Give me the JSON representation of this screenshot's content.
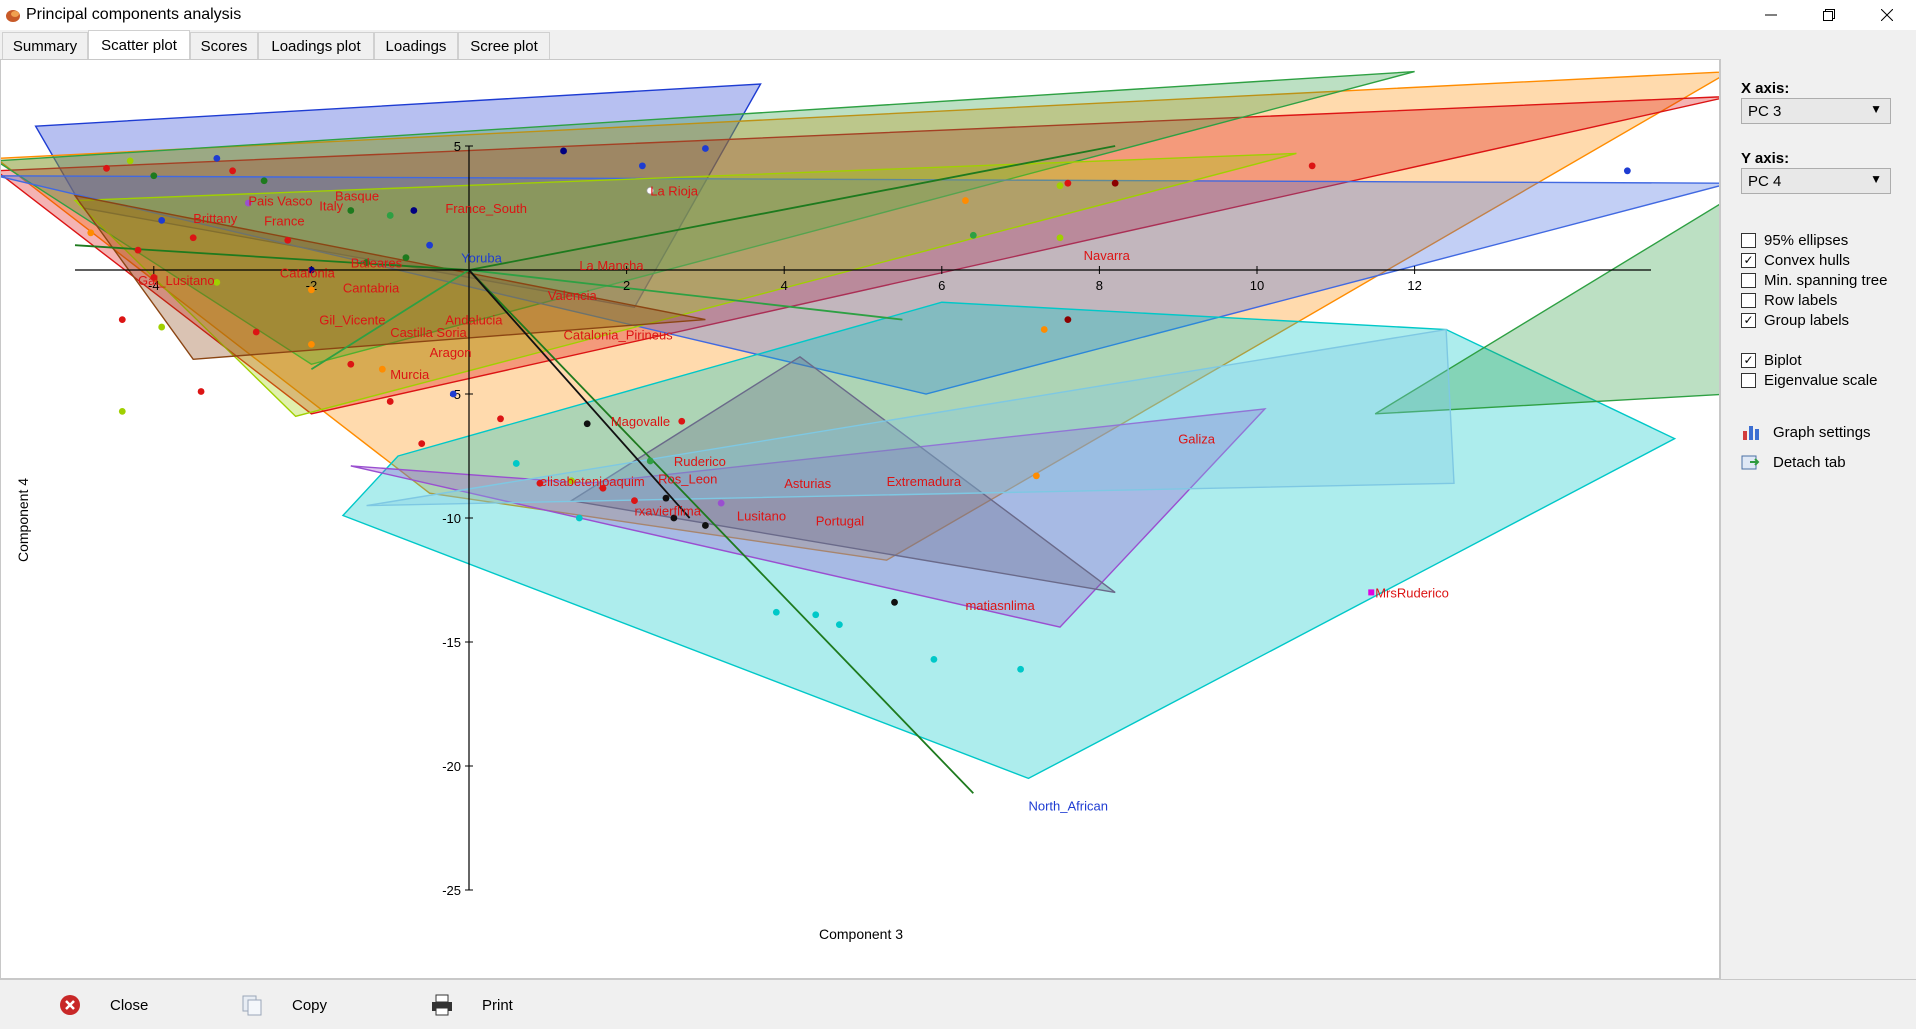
{
  "window": {
    "title": "Principal components analysis"
  },
  "tabs": [
    "Summary",
    "Scatter plot",
    "Scores",
    "Loadings plot",
    "Loadings",
    "Scree plot"
  ],
  "active_tab": "Scatter plot",
  "panel": {
    "x_axis_label": "X axis:",
    "x_axis_value": "PC 3",
    "y_axis_label": "Y axis:",
    "y_axis_value": "PC 4",
    "checkboxes": [
      {
        "label": "95% ellipses",
        "checked": false
      },
      {
        "label": "Convex hulls",
        "checked": true
      },
      {
        "label": "Min. spanning tree",
        "checked": false
      },
      {
        "label": "Row labels",
        "checked": false
      },
      {
        "label": "Group labels",
        "checked": true
      },
      {
        "label": "Biplot",
        "checked": true
      },
      {
        "label": "Eigenvalue scale",
        "checked": false
      }
    ],
    "graph_settings": "Graph settings",
    "detach_tab": "Detach tab"
  },
  "bottom": {
    "close": "Close",
    "copy": "Copy",
    "print": "Print"
  },
  "chart_data": {
    "type": "scatter",
    "xlabel": "Component 3",
    "ylabel": "Component 4",
    "xlim": [
      -5,
      15
    ],
    "ylim": [
      -25,
      5
    ],
    "x_ticks": [
      -4,
      -2,
      2,
      4,
      6,
      8,
      10,
      12
    ],
    "y_ticks": [
      5,
      -5,
      -10,
      -15,
      -20,
      -25
    ],
    "hulls": [
      {
        "color": "#1e3cd2",
        "points": [
          [
            -5.5,
            5.8
          ],
          [
            3.7,
            7.5
          ],
          [
            2.1,
            -1.5
          ],
          [
            -4.9,
            2.5
          ]
        ]
      },
      {
        "color": "#ff8c00",
        "points": [
          [
            -6,
            4.5
          ],
          [
            16,
            8
          ],
          [
            5.3,
            -11.7
          ],
          [
            -0.5,
            -9
          ]
        ]
      },
      {
        "color": "#dc1414",
        "points": [
          [
            -6,
            4
          ],
          [
            16,
            7
          ],
          [
            -2,
            -5.8
          ]
        ]
      },
      {
        "color": "#2ea043",
        "points": [
          [
            -6,
            4.4
          ],
          [
            12,
            8
          ],
          [
            -2,
            -3.8
          ]
        ]
      },
      {
        "color": "#4169e1",
        "points": [
          [
            -6,
            3.8
          ],
          [
            16,
            3.5
          ],
          [
            5.8,
            -5
          ]
        ]
      },
      {
        "color": "#00c8c8",
        "points": [
          [
            -0.9,
            -7.5
          ],
          [
            6,
            -1.3
          ],
          [
            12.4,
            -2.4
          ],
          [
            15.3,
            -6.8
          ],
          [
            7.1,
            -20.5
          ],
          [
            -1.6,
            -9.9
          ]
        ]
      },
      {
        "color": "#9a4fd0",
        "points": [
          [
            1.5,
            -8.6
          ],
          [
            10.1,
            -5.6
          ],
          [
            7.5,
            -14.4
          ],
          [
            -1.5,
            -7.9
          ]
        ]
      },
      {
        "color": "#6a6a8a",
        "points": [
          [
            4.2,
            -3.5
          ],
          [
            8.2,
            -13
          ],
          [
            1.3,
            -9.3
          ]
        ]
      },
      {
        "color": "#a0d000",
        "points": [
          [
            -5,
            2.8
          ],
          [
            10.5,
            4.7
          ],
          [
            -2.2,
            -5.9
          ]
        ]
      },
      {
        "color": "#8b4513",
        "points": [
          [
            -5,
            3
          ],
          [
            3,
            -2
          ],
          [
            -3.5,
            -3.6
          ]
        ]
      },
      {
        "color": "#2ea043",
        "points": [
          [
            11.5,
            -5.8
          ],
          [
            16,
            -5
          ],
          [
            16,
            2.9
          ]
        ]
      },
      {
        "color": "#7ec8e3",
        "points": [
          [
            -1.3,
            -9.5
          ],
          [
            12.4,
            -2.4
          ],
          [
            12.5,
            -8.6
          ]
        ]
      }
    ],
    "points": [
      {
        "x": -4.6,
        "y": 4.1,
        "c": "#dc1414"
      },
      {
        "x": -4.3,
        "y": 4.4,
        "c": "#a0d000"
      },
      {
        "x": -4.0,
        "y": 3.8,
        "c": "#1e7a1e"
      },
      {
        "x": -3.2,
        "y": 4.5,
        "c": "#1e3cd2"
      },
      {
        "x": -3.0,
        "y": 4.0,
        "c": "#dc1414"
      },
      {
        "x": -2.6,
        "y": 3.6,
        "c": "#1e7a1e"
      },
      {
        "x": -3.9,
        "y": 2.0,
        "c": "#1e3cd2"
      },
      {
        "x": -3.5,
        "y": 1.3,
        "c": "#dc1414"
      },
      {
        "x": -2.8,
        "y": 2.7,
        "c": "#9a4fd0"
      },
      {
        "x": -4.8,
        "y": 1.5,
        "c": "#ff8c00"
      },
      {
        "x": -4.2,
        "y": 0.8,
        "c": "#dc1414"
      },
      {
        "x": -2.3,
        "y": 1.2,
        "c": "#dc1414"
      },
      {
        "x": -1.5,
        "y": 2.4,
        "c": "#1e7a1e"
      },
      {
        "x": -1.0,
        "y": 2.2,
        "c": "#2ea043"
      },
      {
        "x": -0.5,
        "y": 1.0,
        "c": "#1e3cd2"
      },
      {
        "x": -4.0,
        "y": -0.3,
        "c": "#dc1414"
      },
      {
        "x": -3.2,
        "y": -0.5,
        "c": "#a0d000"
      },
      {
        "x": -2.0,
        "y": -0.8,
        "c": "#ff8c00"
      },
      {
        "x": -1.3,
        "y": 0.3,
        "c": "#1e7a1e"
      },
      {
        "x": -0.8,
        "y": 0.5,
        "c": "#1e7a1e"
      },
      {
        "x": -4.4,
        "y": -2.0,
        "c": "#dc1414"
      },
      {
        "x": -3.9,
        "y": -2.3,
        "c": "#a0d000"
      },
      {
        "x": -2.7,
        "y": -2.5,
        "c": "#dc1414"
      },
      {
        "x": -2.0,
        "y": -3.0,
        "c": "#ff8c00"
      },
      {
        "x": -1.5,
        "y": -3.8,
        "c": "#dc1414"
      },
      {
        "x": -1.1,
        "y": -4.0,
        "c": "#ff8c00"
      },
      {
        "x": -3.4,
        "y": -4.9,
        "c": "#dc1414"
      },
      {
        "x": -4.4,
        "y": -5.7,
        "c": "#a0d000"
      },
      {
        "x": -1.0,
        "y": -5.3,
        "c": "#dc1414"
      },
      {
        "x": -0.6,
        "y": -7.0,
        "c": "#dc1414"
      },
      {
        "x": -0.2,
        "y": -5.0,
        "c": "#1e3cd2"
      },
      {
        "x": 0.4,
        "y": -6.0,
        "c": "#dc1414"
      },
      {
        "x": 0.6,
        "y": -7.8,
        "c": "#00c8c8"
      },
      {
        "x": 0.9,
        "y": -8.6,
        "c": "#dc1414"
      },
      {
        "x": 1.3,
        "y": -8.5,
        "c": "#a0d000"
      },
      {
        "x": 1.5,
        "y": -6.2,
        "c": "#111111"
      },
      {
        "x": 1.7,
        "y": -8.8,
        "c": "#dc1414"
      },
      {
        "x": 2.1,
        "y": -9.3,
        "c": "#dc1414"
      },
      {
        "x": 2.5,
        "y": -9.2,
        "c": "#111111"
      },
      {
        "x": 2.6,
        "y": -10.0,
        "c": "#111111"
      },
      {
        "x": 2.7,
        "y": -6.1,
        "c": "#dc1414"
      },
      {
        "x": 3.2,
        "y": -9.4,
        "c": "#9a4fd0"
      },
      {
        "x": 3.0,
        "y": -10.3,
        "c": "#111111"
      },
      {
        "x": 2.3,
        "y": -7.7,
        "c": "#2ea043"
      },
      {
        "x": 1.4,
        "y": -10.0,
        "c": "#00c8c8"
      },
      {
        "x": 4.4,
        "y": -13.9,
        "c": "#00c8c8"
      },
      {
        "x": 4.7,
        "y": -14.3,
        "c": "#00c8c8"
      },
      {
        "x": 5.4,
        "y": -13.4,
        "c": "#111111"
      },
      {
        "x": 5.9,
        "y": -15.7,
        "c": "#00c8c8"
      },
      {
        "x": 7.0,
        "y": -16.1,
        "c": "#00c8c8"
      },
      {
        "x": 3.9,
        "y": -13.8,
        "c": "#00c8c8"
      },
      {
        "x": 7.2,
        "y": -8.3,
        "c": "#ff8c00"
      },
      {
        "x": 6.3,
        "y": 2.8,
        "c": "#ff8c00"
      },
      {
        "x": 6.4,
        "y": 1.4,
        "c": "#2ea043"
      },
      {
        "x": 7.3,
        "y": -2.4,
        "c": "#ff8c00"
      },
      {
        "x": 7.5,
        "y": 3.4,
        "c": "#a0d000"
      },
      {
        "x": 7.6,
        "y": 3.5,
        "c": "#dc1414"
      },
      {
        "x": 7.5,
        "y": 1.3,
        "c": "#a0d000"
      },
      {
        "x": 7.6,
        "y": -2.0,
        "c": "#8b0000"
      },
      {
        "x": 8.2,
        "y": 3.5,
        "c": "#8b0000"
      },
      {
        "x": 10.7,
        "y": 4.2,
        "c": "#dc1414"
      },
      {
        "x": 14.7,
        "y": 4.0,
        "c": "#1e3cd2"
      },
      {
        "x": 2.3,
        "y": 3.2,
        "c": "#ffffff"
      },
      {
        "x": 1.2,
        "y": 4.8,
        "c": "#000080"
      },
      {
        "x": 2.2,
        "y": 4.2,
        "c": "#1e3cd2"
      },
      {
        "x": 3.0,
        "y": 4.9,
        "c": "#1e3cd2"
      },
      {
        "x": -0.7,
        "y": 2.4,
        "c": "#000080"
      },
      {
        "x": -2.0,
        "y": 0.0,
        "c": "#000080"
      }
    ],
    "group_labels": [
      {
        "text": "La Rioja",
        "x": 2.3,
        "y": 3.0,
        "c": "#dc1414"
      },
      {
        "text": "Pais Vasco",
        "x": -2.8,
        "y": 2.6,
        "c": "#dc1414"
      },
      {
        "text": "Basque",
        "x": -1.7,
        "y": 2.8,
        "c": "#dc1414"
      },
      {
        "text": "Italy",
        "x": -1.9,
        "y": 2.4,
        "c": "#dc1414"
      },
      {
        "text": "France_South",
        "x": -0.3,
        "y": 2.3,
        "c": "#dc1414"
      },
      {
        "text": "France",
        "x": -2.6,
        "y": 1.8,
        "c": "#dc1414"
      },
      {
        "text": "Brittany",
        "x": -3.5,
        "y": 1.9,
        "c": "#dc1414"
      },
      {
        "text": "Yoruba",
        "x": -0.1,
        "y": 0.3,
        "c": "#1e3cd2"
      },
      {
        "text": "Baleares",
        "x": -1.5,
        "y": 0.1,
        "c": "#dc1414"
      },
      {
        "text": "La Mancha",
        "x": 1.4,
        "y": 0.0,
        "c": "#dc1414"
      },
      {
        "text": "Navarra",
        "x": 7.8,
        "y": 0.4,
        "c": "#dc1414"
      },
      {
        "text": "Catalonia",
        "x": -2.4,
        "y": -0.3,
        "c": "#dc1414"
      },
      {
        "text": "Cantabria",
        "x": -1.6,
        "y": -0.9,
        "c": "#dc1414"
      },
      {
        "text": "Gal_Lusitano",
        "x": -4.2,
        "y": -0.6,
        "c": "#dc1414"
      },
      {
        "text": "Valencia",
        "x": 1.0,
        "y": -1.2,
        "c": "#dc1414"
      },
      {
        "text": "Gil_Vicente",
        "x": -1.9,
        "y": -2.2,
        "c": "#dc1414"
      },
      {
        "text": "Andalucia",
        "x": -0.3,
        "y": -2.2,
        "c": "#dc1414"
      },
      {
        "text": "Castilla Soria",
        "x": -1.0,
        "y": -2.7,
        "c": "#dc1414"
      },
      {
        "text": "Catalonia_Pirineus",
        "x": 1.2,
        "y": -2.8,
        "c": "#dc1414"
      },
      {
        "text": "Aragon",
        "x": -0.5,
        "y": -3.5,
        "c": "#dc1414"
      },
      {
        "text": "Murcia",
        "x": -1.0,
        "y": -4.4,
        "c": "#dc1414"
      },
      {
        "text": "Magovalle",
        "x": 1.8,
        "y": -6.3,
        "c": "#dc1414"
      },
      {
        "text": "Ruderico",
        "x": 2.6,
        "y": -7.9,
        "c": "#dc1414"
      },
      {
        "text": "Ros_Leon",
        "x": 2.4,
        "y": -8.6,
        "c": "#dc1414"
      },
      {
        "text": "elisabetenjoaquim",
        "x": 0.9,
        "y": -8.7,
        "c": "#dc1414"
      },
      {
        "text": "Asturias",
        "x": 4.0,
        "y": -8.8,
        "c": "#dc1414"
      },
      {
        "text": "Extremadura",
        "x": 5.3,
        "y": -8.7,
        "c": "#dc1414"
      },
      {
        "text": "rxavierflima",
        "x": 2.1,
        "y": -9.9,
        "c": "#dc1414"
      },
      {
        "text": "Lusitano",
        "x": 3.4,
        "y": -10.1,
        "c": "#dc1414"
      },
      {
        "text": "Portugal",
        "x": 4.4,
        "y": -10.3,
        "c": "#dc1414"
      },
      {
        "text": "Galiza",
        "x": 9.0,
        "y": -7.0,
        "c": "#dc1414"
      },
      {
        "text": "matiasnlima",
        "x": 6.3,
        "y": -13.7,
        "c": "#dc1414"
      },
      {
        "text": "MrsRuderico",
        "x": 11.5,
        "y": -13.2,
        "c": "#dc1414"
      },
      {
        "text": "North_African",
        "x": 7.1,
        "y": -21.8,
        "c": "#1e3cd2"
      }
    ],
    "biplot_vectors": [
      {
        "x": 8.2,
        "y": 5.0,
        "c": "#1e7a1e"
      },
      {
        "x": 5.5,
        "y": -2.0,
        "c": "#2ea043"
      },
      {
        "x": 6.4,
        "y": -21.1,
        "c": "#1e7a1e"
      },
      {
        "x": 2.8,
        "y": -10.0,
        "c": "#111111"
      },
      {
        "x": -5.0,
        "y": 1.0,
        "c": "#1e7a1e"
      },
      {
        "x": -2.0,
        "y": -4.0,
        "c": "#2ea043"
      }
    ]
  }
}
